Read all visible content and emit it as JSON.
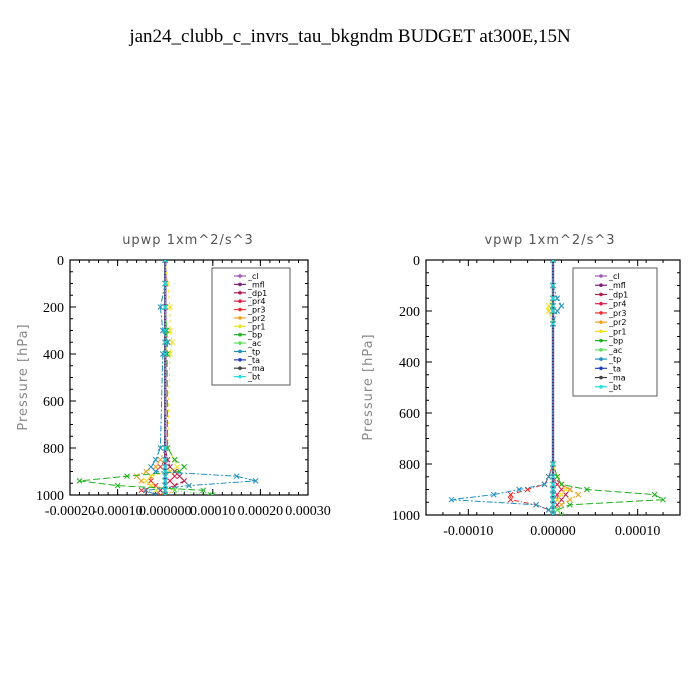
{
  "figure": {
    "title": "jan24_clubb_c_invrs_tau_bkgndm  BUDGET at300E,15N"
  },
  "legend": [
    {
      "name": "_cl",
      "color": "#9b59b6"
    },
    {
      "name": "_mfl",
      "color": "#7b1f7b"
    },
    {
      "name": "_dp1",
      "color": "#b0204a"
    },
    {
      "name": "_pr4",
      "color": "#e0204a"
    },
    {
      "name": "_pr3",
      "color": "#e83030"
    },
    {
      "name": "_pr2",
      "color": "#f0a020"
    },
    {
      "name": "_pr1",
      "color": "#f0e020"
    },
    {
      "name": "_bp",
      "color": "#20b020"
    },
    {
      "name": "_ac",
      "color": "#60e060"
    },
    {
      "name": "_tp",
      "color": "#2090c0"
    },
    {
      "name": "_ta",
      "color": "#2040c0"
    },
    {
      "name": "_ma",
      "color": "#404040"
    },
    {
      "name": "_bt",
      "color": "#20e0e0"
    }
  ],
  "chart_data": [
    {
      "type": "line",
      "title": "upwp   1xm^2/s^3",
      "ylabel": "Pressure [hPa]",
      "xlabel": "",
      "xlim": [
        -0.0002,
        0.0003
      ],
      "ylim": [
        1000,
        0
      ],
      "xticks": [
        "-0.00020",
        "-0.00010",
        "0.000000",
        "0.00010",
        "0.00020",
        "0.00030"
      ],
      "yticks": [
        "0",
        "200",
        "400",
        "600",
        "800",
        "1000"
      ],
      "y": [
        0,
        100,
        200,
        300,
        350,
        400,
        800,
        850,
        880,
        900,
        920,
        940,
        960,
        980,
        1000
      ],
      "series": [
        {
          "name": "_cl",
          "values": [
            0,
            0,
            0,
            0,
            0,
            0,
            0,
            0,
            0,
            0,
            0,
            0,
            0,
            0,
            0
          ]
        },
        {
          "name": "_mfl",
          "values": [
            0,
            0,
            0,
            0,
            0,
            0,
            0,
            0,
            0,
            0,
            0,
            0,
            0,
            0,
            0
          ]
        },
        {
          "name": "_dp1",
          "values": [
            0,
            0,
            0,
            0,
            0,
            0,
            0,
            5e-06,
            1e-05,
            2e-05,
            3e-05,
            4e-05,
            2e-05,
            -1e-05,
            0
          ]
        },
        {
          "name": "_pr4",
          "values": [
            0,
            0,
            0,
            0,
            0,
            0,
            0,
            0,
            0,
            1e-05,
            2e-05,
            1e-05,
            0,
            0,
            0
          ]
        },
        {
          "name": "_pr3",
          "values": [
            0,
            0,
            0,
            0,
            0,
            0,
            0,
            0,
            -1e-05,
            -2e-05,
            -3e-05,
            -3e-05,
            -2e-05,
            -5e-05,
            -1e-05
          ]
        },
        {
          "name": "_pr2",
          "values": [
            0,
            0,
            0,
            2e-06,
            5e-06,
            0,
            0,
            -1e-05,
            -2e-05,
            -4e-05,
            -6e-05,
            -5e-05,
            -3e-05,
            2e-05,
            0
          ]
        },
        {
          "name": "_pr1",
          "values": [
            0,
            5e-06,
            1e-05,
            1e-05,
            1.5e-05,
            1e-05,
            5e-06,
            2e-05,
            2.5e-05,
            1e-05,
            -3e-05,
            -4e-05,
            -3e-05,
            -2e-05,
            0
          ]
        },
        {
          "name": "_bp",
          "values": [
            0,
            0,
            0,
            3e-06,
            5e-06,
            4e-06,
            5e-06,
            2e-05,
            4e-05,
            3e-05,
            -8e-05,
            -0.00018,
            -0.0001,
            8e-05,
            0.0001
          ]
        },
        {
          "name": "_ac",
          "values": [
            0,
            0,
            0,
            0,
            5e-06,
            0,
            0,
            0,
            0,
            0,
            0,
            0,
            0,
            2e-05,
            0.0001
          ]
        },
        {
          "name": "_tp",
          "values": [
            0,
            0,
            -1e-05,
            -5e-06,
            5e-06,
            -5e-06,
            -1e-05,
            -2e-05,
            -3e-05,
            -2e-05,
            0.00015,
            0.00019,
            5e-05,
            -4e-05,
            -2e-05
          ]
        },
        {
          "name": "_ta",
          "values": [
            0,
            0,
            0,
            0,
            0,
            0,
            0,
            0,
            0,
            0,
            0,
            0,
            0,
            0,
            0
          ]
        },
        {
          "name": "_ma",
          "values": [
            0,
            0,
            0,
            0,
            0,
            0,
            0,
            0,
            0,
            0,
            0,
            0,
            0,
            0,
            0
          ]
        },
        {
          "name": "_bt",
          "values": [
            0,
            0,
            0,
            0,
            0,
            0,
            0,
            0,
            0,
            0,
            0,
            0,
            0,
            0,
            0
          ]
        }
      ]
    },
    {
      "type": "line",
      "title": "vpwp   1xm^2/s^3",
      "ylabel": "Pressure [hPa]",
      "xlabel": "",
      "xlim": [
        -0.00015,
        0.00015
      ],
      "ylim": [
        1000,
        0
      ],
      "xticks": [
        "-0.00010",
        "0.00000",
        "0.00010"
      ],
      "yticks": [
        "0",
        "200",
        "400",
        "600",
        "800",
        "1000"
      ],
      "y": [
        0,
        100,
        150,
        180,
        200,
        250,
        800,
        850,
        880,
        900,
        920,
        940,
        960,
        980,
        1000
      ],
      "series": [
        {
          "name": "_cl",
          "values": [
            0,
            0,
            0,
            0,
            0,
            0,
            0,
            0,
            0,
            0,
            0,
            0,
            0,
            0,
            0
          ]
        },
        {
          "name": "_mfl",
          "values": [
            0,
            0,
            0,
            0,
            0,
            0,
            0,
            0,
            0,
            0,
            0,
            0,
            0,
            0,
            0
          ]
        },
        {
          "name": "_dp1",
          "values": [
            0,
            0,
            0,
            0,
            0,
            0,
            0,
            0,
            1e-05,
            2e-05,
            1.5e-05,
            1e-05,
            5e-06,
            0,
            0
          ]
        },
        {
          "name": "_pr4",
          "values": [
            0,
            0,
            0,
            0,
            0,
            0,
            0,
            0,
            5e-06,
            1e-05,
            5e-06,
            5e-06,
            0,
            0,
            0
          ]
        },
        {
          "name": "_pr3",
          "values": [
            0,
            0,
            0,
            0,
            0,
            0,
            0,
            -5e-06,
            -1e-05,
            -3e-05,
            -5e-05,
            -5e-05,
            -2e-05,
            -5e-06,
            0
          ]
        },
        {
          "name": "_pr2",
          "values": [
            0,
            0,
            0,
            0,
            -5e-06,
            0,
            0,
            5e-06,
            1e-05,
            2e-05,
            3e-05,
            2e-05,
            1e-05,
            0,
            0
          ]
        },
        {
          "name": "_pr1",
          "values": [
            0,
            0,
            0,
            -5e-06,
            -5e-06,
            0,
            0,
            5e-06,
            1e-05,
            1.5e-05,
            1e-05,
            5e-06,
            0,
            0,
            0
          ]
        },
        {
          "name": "_bp",
          "values": [
            0,
            0,
            0,
            0,
            0,
            0,
            0,
            5e-06,
            1e-05,
            4e-05,
            0.00012,
            0.00013,
            2e-05,
            5e-06,
            0
          ]
        },
        {
          "name": "_ac",
          "values": [
            0,
            0,
            0,
            0,
            0,
            0,
            0,
            0,
            0,
            0,
            0,
            0,
            0,
            5e-06,
            1e-05
          ]
        },
        {
          "name": "_tp",
          "values": [
            0,
            0,
            5e-06,
            1e-05,
            5e-06,
            0,
            0,
            -5e-06,
            -1e-05,
            -4e-05,
            -7e-05,
            -0.00012,
            -2e-05,
            -5e-06,
            0
          ]
        },
        {
          "name": "_ta",
          "values": [
            0,
            0,
            0,
            0,
            0,
            0,
            0,
            0,
            0,
            0,
            0,
            0,
            0,
            0,
            0
          ]
        },
        {
          "name": "_ma",
          "values": [
            0,
            0,
            0,
            0,
            0,
            0,
            0,
            0,
            0,
            0,
            0,
            0,
            0,
            0,
            0
          ]
        },
        {
          "name": "_bt",
          "values": [
            0,
            0,
            0,
            0,
            0,
            0,
            0,
            0,
            0,
            0,
            0,
            0,
            0,
            0,
            0
          ]
        }
      ]
    }
  ]
}
